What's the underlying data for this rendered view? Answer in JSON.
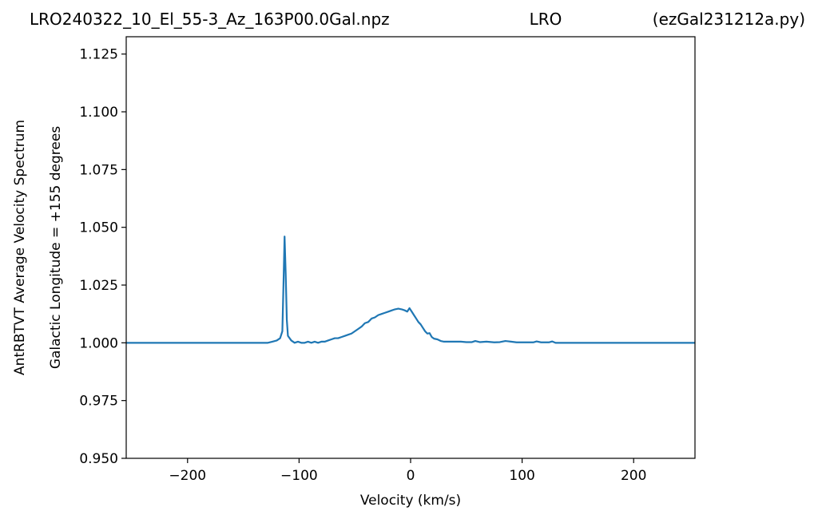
{
  "header": {
    "filename": "LRO240322_10_El_55-3_Az_163P00.0Gal.npz",
    "station": "LRO",
    "script": "(ezGal231212a.py)"
  },
  "chart_data": {
    "type": "line",
    "xlabel": "Velocity (km/s)",
    "ylabel_outer": "AntRBTVT Average Velocity Spectrum",
    "ylabel_inner": "Galactic Longitude = +155 degrees",
    "xlim": [
      -255,
      255
    ],
    "ylim": [
      0.95,
      1.1325
    ],
    "xticks": [
      -200,
      -100,
      0,
      100,
      200
    ],
    "xtick_labels": [
      "−200",
      "−100",
      "0",
      "100",
      "200"
    ],
    "yticks": [
      0.95,
      0.975,
      1.0,
      1.025,
      1.05,
      1.075,
      1.1,
      1.125
    ],
    "ytick_labels": [
      "0.950",
      "0.975",
      "1.000",
      "1.025",
      "1.050",
      "1.075",
      "1.100",
      "1.125"
    ],
    "grid": false,
    "series": [
      {
        "color": "#1f77b4",
        "points": [
          [
            -255,
            1.0
          ],
          [
            -200,
            1.0
          ],
          [
            -150,
            1.0
          ],
          [
            -128,
            1.0
          ],
          [
            -124,
            1.0005
          ],
          [
            -120,
            1.001
          ],
          [
            -117,
            1.002
          ],
          [
            -115,
            1.005
          ],
          [
            -114,
            1.025
          ],
          [
            -113,
            1.046
          ],
          [
            -112,
            1.03
          ],
          [
            -111,
            1.01
          ],
          [
            -110,
            1.003
          ],
          [
            -107,
            1.001
          ],
          [
            -104,
            1.0
          ],
          [
            -101,
            1.0005
          ],
          [
            -98,
            1.0
          ],
          [
            -95,
            1.0
          ],
          [
            -92,
            1.0005
          ],
          [
            -89,
            1.0
          ],
          [
            -86,
            1.0005
          ],
          [
            -83,
            1.0
          ],
          [
            -80,
            1.0005
          ],
          [
            -77,
            1.0005
          ],
          [
            -74,
            1.001
          ],
          [
            -71,
            1.0015
          ],
          [
            -68,
            1.002
          ],
          [
            -65,
            1.002
          ],
          [
            -62,
            1.0025
          ],
          [
            -59,
            1.003
          ],
          [
            -56,
            1.0035
          ],
          [
            -53,
            1.004
          ],
          [
            -50,
            1.005
          ],
          [
            -47,
            1.006
          ],
          [
            -44,
            1.007
          ],
          [
            -41,
            1.0085
          ],
          [
            -38,
            1.009
          ],
          [
            -35,
            1.0105
          ],
          [
            -32,
            1.011
          ],
          [
            -29,
            1.012
          ],
          [
            -26,
            1.0125
          ],
          [
            -23,
            1.013
          ],
          [
            -20,
            1.0135
          ],
          [
            -17,
            1.014
          ],
          [
            -14,
            1.0145
          ],
          [
            -11,
            1.0148
          ],
          [
            -8,
            1.0145
          ],
          [
            -5,
            1.014
          ],
          [
            -3,
            1.0135
          ],
          [
            -1,
            1.015
          ],
          [
            1,
            1.0135
          ],
          [
            3,
            1.012
          ],
          [
            5,
            1.0105
          ],
          [
            7,
            1.009
          ],
          [
            9,
            1.008
          ],
          [
            11,
            1.0065
          ],
          [
            13,
            1.005
          ],
          [
            15,
            1.004
          ],
          [
            17,
            1.0042
          ],
          [
            19,
            1.0025
          ],
          [
            21,
            1.0018
          ],
          [
            24,
            1.0015
          ],
          [
            27,
            1.0008
          ],
          [
            30,
            1.0005
          ],
          [
            35,
            1.0005
          ],
          [
            40,
            1.0005
          ],
          [
            45,
            1.0005
          ],
          [
            50,
            1.0003
          ],
          [
            55,
            1.0003
          ],
          [
            58,
            1.0008
          ],
          [
            62,
            1.0003
          ],
          [
            68,
            1.0005
          ],
          [
            75,
            1.0002
          ],
          [
            80,
            1.0003
          ],
          [
            85,
            1.0008
          ],
          [
            90,
            1.0005
          ],
          [
            95,
            1.0002
          ],
          [
            100,
            1.0002
          ],
          [
            105,
            1.0002
          ],
          [
            110,
            1.0002
          ],
          [
            113,
            1.0006
          ],
          [
            117,
            1.0002
          ],
          [
            121,
            1.0002
          ],
          [
            124,
            1.0002
          ],
          [
            127,
            1.0006
          ],
          [
            130,
            1.0
          ],
          [
            150,
            1.0
          ],
          [
            200,
            1.0
          ],
          [
            255,
            1.0
          ]
        ]
      }
    ]
  }
}
